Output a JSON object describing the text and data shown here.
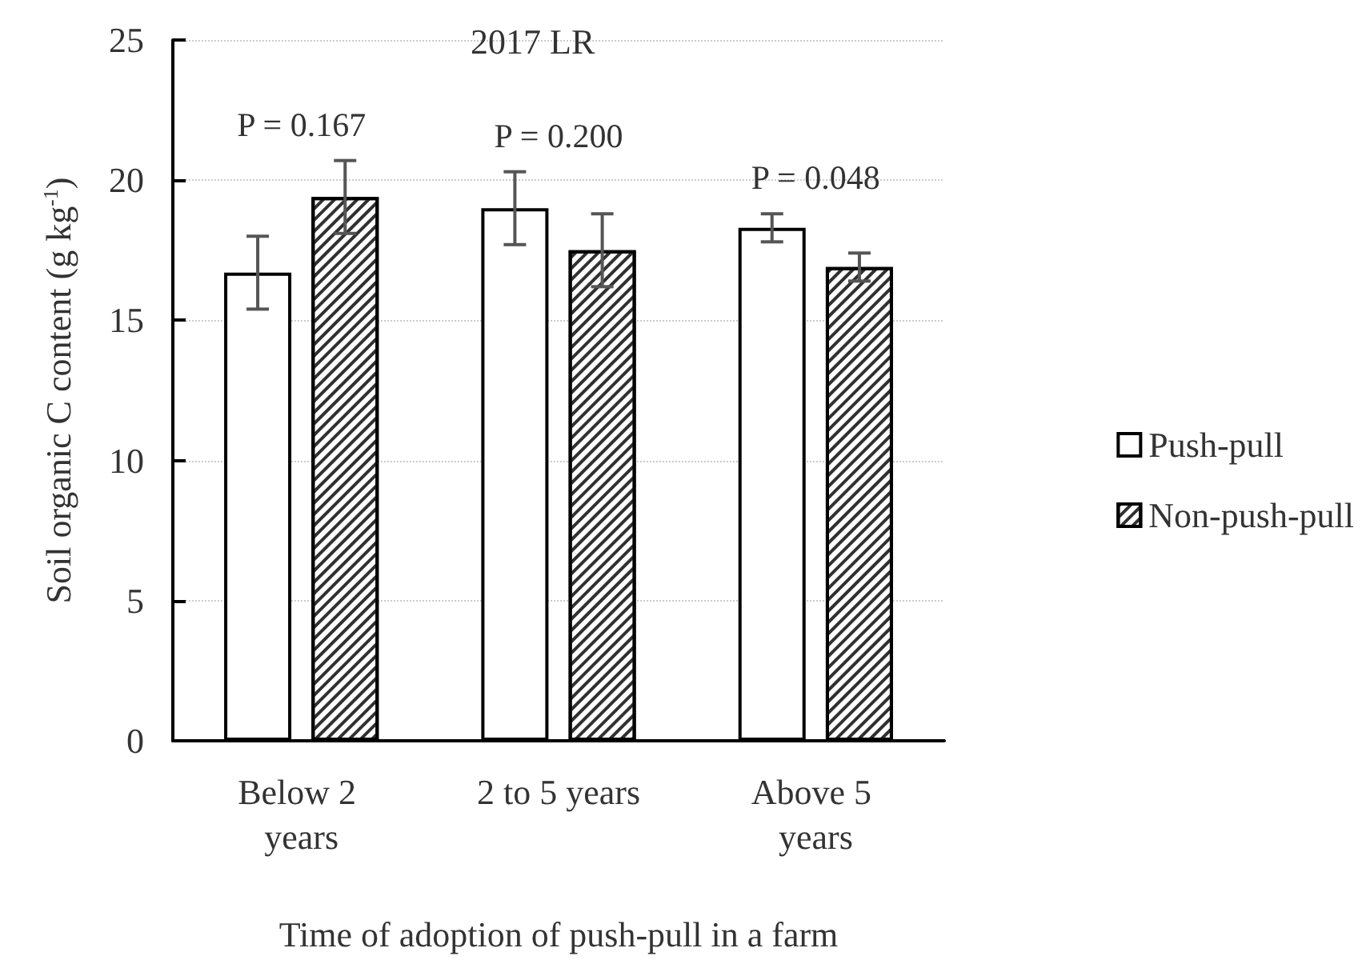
{
  "chart_data": {
    "type": "bar",
    "title": "2017 LR",
    "xlabel": "Time of adoption of push-pull in a farm",
    "ylabel": "Soil organic C content (g kg$^{-1}$)",
    "categories": [
      "Below 2 years",
      "2 to 5 years",
      "Above 5 years"
    ],
    "series": [
      {
        "name": "Push-pull",
        "color": "#ffffff",
        "values": [
          16.7,
          19.0,
          18.3
        ],
        "errors": [
          1.3,
          1.3,
          0.5
        ]
      },
      {
        "name": "Non-push-pull",
        "color": "#ffffff",
        "values": [
          19.4,
          17.5,
          16.9
        ],
        "errors": [
          1.3,
          1.3,
          0.5
        ]
      }
    ],
    "ylim": [
      0,
      25
    ],
    "yticks": [
      0,
      5,
      10,
      15,
      20,
      25
    ],
    "grid": "y",
    "legend": "right",
    "annotations": [
      "P = 0.167",
      "P = 0.200",
      "P = 0.048"
    ]
  }
}
